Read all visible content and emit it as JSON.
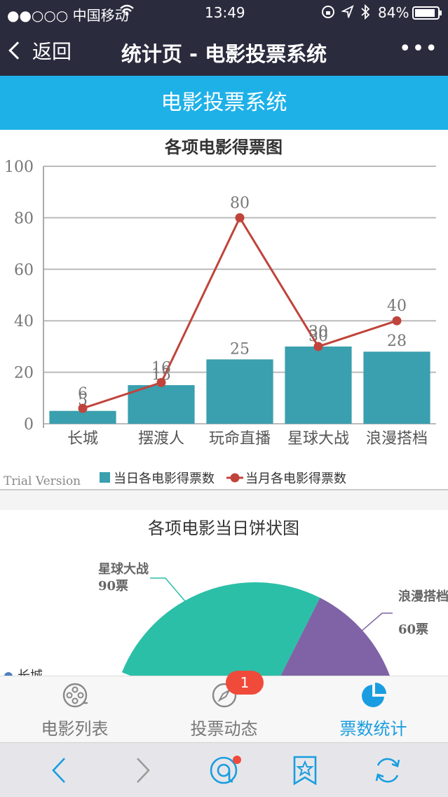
{
  "status": {
    "carrier": "●●○○○ 中国移动",
    "time": "13:49",
    "battery": "84%"
  },
  "nav": {
    "back_label": "返回",
    "title": "统计页 - 电影投票系统",
    "more": "•••"
  },
  "banner": {
    "title": "电影投票系统"
  },
  "chart_data": [
    {
      "type": "bar",
      "title": "各项电影得票图",
      "categories": [
        "长城",
        "摆渡人",
        "玩命直播",
        "星球大战",
        "浪漫搭档"
      ],
      "ylim": [
        0,
        100
      ],
      "yticks": [
        0,
        20,
        40,
        60,
        80,
        100
      ],
      "series": [
        {
          "name": "当日各电影得票数",
          "type": "bar",
          "color": "#3a9fae",
          "values": [
            5,
            15,
            25,
            30,
            28
          ]
        },
        {
          "name": "当月各电影得票数",
          "type": "line",
          "color": "#c0443b",
          "values": [
            6,
            16,
            80,
            30,
            40
          ]
        }
      ],
      "watermark": "Trial Version",
      "legend_position": "bottom"
    },
    {
      "type": "pie",
      "title": "各项电影当日饼状图",
      "slices": [
        {
          "label": "星球大战",
          "value_label": "90票",
          "value": 90,
          "color": "#2bbfa8"
        },
        {
          "label": "浪漫搭档",
          "value_label": "60票",
          "value": 60,
          "color": "#7f63a6"
        }
      ],
      "legend_partial": "长城"
    }
  ],
  "tabs": [
    {
      "label": "电影列表",
      "icon": "film-reel-icon",
      "active": false
    },
    {
      "label": "投票动态",
      "icon": "compass-icon",
      "active": false,
      "badge": "1"
    },
    {
      "label": "票数统计",
      "icon": "pie-chart-icon",
      "active": true
    }
  ],
  "colors": {
    "nav_bg": "#2a2b3d",
    "banner_bg": "#1eb1e8",
    "active_tab": "#1a9de0"
  }
}
